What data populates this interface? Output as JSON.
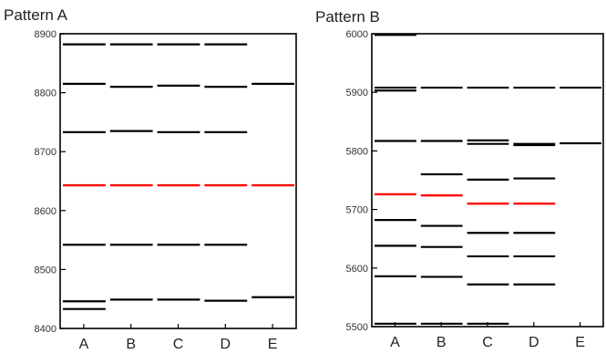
{
  "chart_data": [
    {
      "type": "line",
      "title": "Pattern A",
      "categories": [
        "A",
        "B",
        "C",
        "D",
        "E"
      ],
      "ylim": [
        8400,
        8900
      ],
      "yticks": [
        8400,
        8500,
        8600,
        8700,
        8800,
        8900
      ],
      "grid": false,
      "marks": [
        {
          "category": "A",
          "values": [
            8882,
            8815,
            8733,
            8643,
            8542,
            8446,
            8433
          ]
        },
        {
          "category": "B",
          "values": [
            8882,
            8810,
            8735,
            8643,
            8542,
            8449
          ]
        },
        {
          "category": "C",
          "values": [
            8882,
            8812,
            8733,
            8643,
            8542,
            8449
          ]
        },
        {
          "category": "D",
          "values": [
            8882,
            8810,
            8733,
            8643,
            8542,
            8447
          ]
        },
        {
          "category": "E",
          "values": [
            8815,
            8643,
            8453
          ]
        }
      ],
      "highlight": {
        "value": 8643,
        "color": "#ff0000"
      },
      "colors": {
        "line": "#000000",
        "highlight": "#ff0000",
        "axis": "#000000"
      }
    },
    {
      "type": "line",
      "title": "Pattern B",
      "categories": [
        "A",
        "B",
        "C",
        "D",
        "E"
      ],
      "ylim": [
        5500,
        6000
      ],
      "yticks": [
        5500,
        5600,
        5700,
        5800,
        5900,
        6000
      ],
      "grid": false,
      "marks": [
        {
          "category": "A",
          "values": [
            5998,
            5908,
            5903,
            5817,
            5726,
            5682,
            5638,
            5586,
            5505
          ]
        },
        {
          "category": "B",
          "values": [
            5908,
            5817,
            5760,
            5724,
            5672,
            5636,
            5585,
            5505
          ]
        },
        {
          "category": "C",
          "values": [
            5908,
            5818,
            5812,
            5751,
            5710,
            5660,
            5620,
            5572,
            5505
          ]
        },
        {
          "category": "D",
          "values": [
            5908,
            5812,
            5810,
            5753,
            5710,
            5660,
            5620,
            5572
          ]
        },
        {
          "category": "E",
          "values": [
            5908,
            5813
          ]
        }
      ],
      "highlight": {
        "values": [
          5726,
          5724,
          5710,
          5710
        ],
        "color": "#ff0000"
      },
      "colors": {
        "line": "#000000",
        "highlight": "#ff0000",
        "axis": "#000000"
      }
    }
  ]
}
